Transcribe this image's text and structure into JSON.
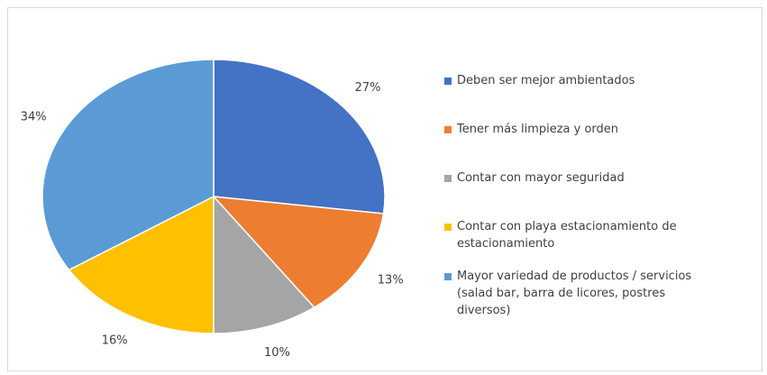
{
  "chart_data": {
    "type": "pie",
    "categories": [
      "Deben ser mejor ambientados",
      "Tener más limpieza y orden",
      "Contar con mayor seguridad",
      "Contar con playa estacionamiento de estacionamiento",
      "Mayor variedad de productos / servicios (salad bar, barra de licores, postres diversos)"
    ],
    "values": [
      27,
      13,
      10,
      16,
      34
    ],
    "value_labels": [
      "27%",
      "13%",
      "10%",
      "16%",
      "34%"
    ],
    "colors": [
      "#4472c4",
      "#ed7d31",
      "#a5a5a5",
      "#ffc000",
      "#5b9bd5"
    ],
    "legend": "right"
  }
}
